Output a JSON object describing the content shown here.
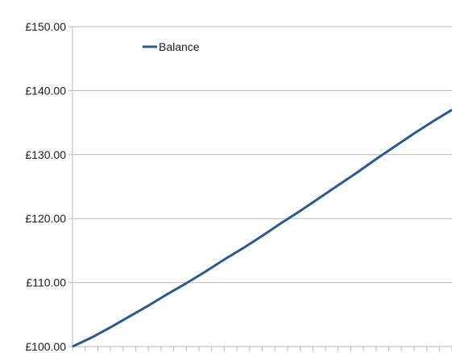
{
  "chart_data": {
    "type": "line",
    "title": "",
    "xlabel": "",
    "ylabel": "",
    "ylim": [
      100,
      150
    ],
    "yticks": [
      100,
      110,
      120,
      130,
      140,
      150
    ],
    "ytick_labels": [
      "£100.00",
      "£110.00",
      "£120.00",
      "£130.00",
      "£140.00",
      "£150.00"
    ],
    "grid": "horizontal",
    "legend": "top-left",
    "x_tick_count": 31,
    "series": [
      {
        "name": "Balance",
        "color": "#2a5a8e",
        "x": [
          0,
          5,
          10,
          15,
          20,
          25,
          30,
          35,
          40,
          45,
          50,
          55,
          60,
          65,
          70,
          75,
          80,
          85,
          90,
          95,
          100
        ],
        "values": [
          100.0,
          101.4,
          103.0,
          104.7,
          106.4,
          108.2,
          109.9,
          111.7,
          113.6,
          115.4,
          117.3,
          119.3,
          121.2,
          123.2,
          125.2,
          127.2,
          129.3,
          131.3,
          133.3,
          135.2,
          137.0
        ]
      }
    ]
  },
  "colors": {
    "grid": "#b8b8b8",
    "axis": "#b8b8b8",
    "line": "#2a5a8e"
  }
}
